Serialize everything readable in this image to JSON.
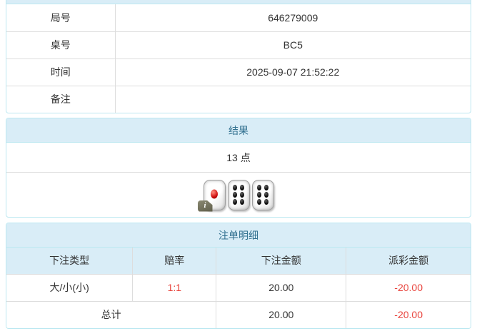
{
  "colors": {
    "panel_border": "#bce8f1",
    "panel_header_bg": "#d9edf7",
    "panel_header_text": "#31708f",
    "grid_border": "#dddddd",
    "body_text": "#333333",
    "negative_text": "#e8433c"
  },
  "game_info": {
    "rows": [
      {
        "label": "局号",
        "value": "646279009"
      },
      {
        "label": "桌号",
        "value": "BC5"
      },
      {
        "label": "时间",
        "value": "2025-09-07 21:52:22"
      },
      {
        "label": "备注",
        "value": ""
      }
    ]
  },
  "result_panel": {
    "title": "结果",
    "points": "13 点",
    "dice": [
      1,
      6,
      6
    ],
    "info_badge": "i"
  },
  "bets_panel": {
    "title": "注单明细",
    "columns": [
      "下注类型",
      "赔率",
      "下注金额",
      "派彩金额"
    ],
    "rows": [
      {
        "type": "大/小(小)",
        "odds": "1:1",
        "bet": "20.00",
        "payout": "-20.00"
      }
    ],
    "total": {
      "label": "总计",
      "bet": "20.00",
      "payout": "-20.00"
    }
  }
}
